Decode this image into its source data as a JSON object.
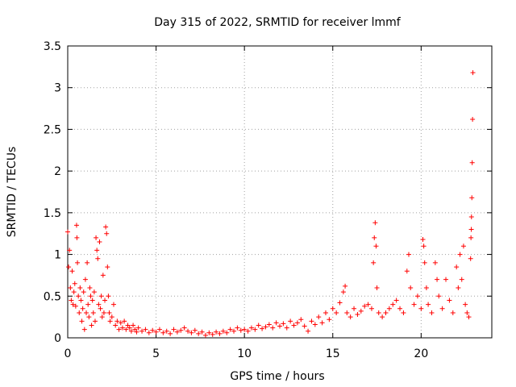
{
  "chart_data": {
    "type": "scatter",
    "title": "Day 315 of 2022, SRMTID for receiver lmmf",
    "xlabel": "GPS time / hours",
    "ylabel": "SRMTID / TECUs",
    "xlim": [
      0,
      24
    ],
    "ylim": [
      0,
      3.5
    ],
    "x_ticks": [
      0,
      5,
      10,
      15,
      20
    ],
    "x_tick_labels": [
      "0",
      "5",
      "10",
      "15",
      "20"
    ],
    "y_ticks": [
      0,
      0.5,
      1,
      1.5,
      2,
      2.5,
      3,
      3.5
    ],
    "y_tick_labels": [
      "0",
      "0.5",
      "1",
      "1.5",
      "2",
      "2.5",
      "3",
      "3.5"
    ],
    "grid": true,
    "marker": "+",
    "series": [
      {
        "name": "SRMTID",
        "color": "#ff0000",
        "points": [
          [
            0.0,
            1.27
          ],
          [
            0.05,
            0.85
          ],
          [
            0.1,
            1.05
          ],
          [
            0.15,
            0.6
          ],
          [
            0.2,
            0.45
          ],
          [
            0.25,
            0.8
          ],
          [
            0.3,
            0.4
          ],
          [
            0.35,
            0.55
          ],
          [
            0.4,
            0.65
          ],
          [
            0.45,
            0.38
          ],
          [
            0.5,
            1.35
          ],
          [
            0.52,
            1.2
          ],
          [
            0.55,
            0.9
          ],
          [
            0.6,
            0.5
          ],
          [
            0.65,
            0.3
          ],
          [
            0.7,
            0.6
          ],
          [
            0.75,
            0.45
          ],
          [
            0.8,
            0.2
          ],
          [
            0.85,
            0.35
          ],
          [
            0.9,
            0.55
          ],
          [
            0.95,
            0.1
          ],
          [
            1.0,
            0.7
          ],
          [
            1.05,
            0.3
          ],
          [
            1.1,
            0.9
          ],
          [
            1.15,
            0.4
          ],
          [
            1.2,
            0.25
          ],
          [
            1.25,
            0.6
          ],
          [
            1.3,
            0.5
          ],
          [
            1.35,
            0.15
          ],
          [
            1.4,
            0.45
          ],
          [
            1.45,
            0.3
          ],
          [
            1.5,
            0.55
          ],
          [
            1.55,
            0.2
          ],
          [
            1.6,
            1.2
          ],
          [
            1.65,
            1.05
          ],
          [
            1.7,
            0.95
          ],
          [
            1.75,
            0.4
          ],
          [
            1.8,
            1.15
          ],
          [
            1.85,
            0.35
          ],
          [
            1.9,
            0.5
          ],
          [
            1.95,
            0.25
          ],
          [
            2.0,
            0.75
          ],
          [
            2.05,
            0.3
          ],
          [
            2.1,
            0.45
          ],
          [
            2.15,
            1.33
          ],
          [
            2.2,
            1.25
          ],
          [
            2.25,
            0.85
          ],
          [
            2.3,
            0.5
          ],
          [
            2.35,
            0.3
          ],
          [
            2.4,
            0.2
          ],
          [
            2.5,
            0.25
          ],
          [
            2.6,
            0.4
          ],
          [
            2.7,
            0.15
          ],
          [
            2.8,
            0.2
          ],
          [
            2.9,
            0.1
          ],
          [
            3.0,
            0.18
          ],
          [
            3.1,
            0.12
          ],
          [
            3.2,
            0.2
          ],
          [
            3.3,
            0.1
          ],
          [
            3.4,
            0.15
          ],
          [
            3.5,
            0.12
          ],
          [
            3.6,
            0.08
          ],
          [
            3.7,
            0.15
          ],
          [
            3.8,
            0.1
          ],
          [
            3.9,
            0.07
          ],
          [
            4.0,
            0.12
          ],
          [
            4.2,
            0.08
          ],
          [
            4.4,
            0.1
          ],
          [
            4.6,
            0.06
          ],
          [
            4.8,
            0.09
          ],
          [
            5.0,
            0.07
          ],
          [
            5.2,
            0.1
          ],
          [
            5.4,
            0.06
          ],
          [
            5.6,
            0.08
          ],
          [
            5.8,
            0.05
          ],
          [
            6.0,
            0.1
          ],
          [
            6.2,
            0.07
          ],
          [
            6.4,
            0.09
          ],
          [
            6.6,
            0.12
          ],
          [
            6.8,
            0.08
          ],
          [
            7.0,
            0.06
          ],
          [
            7.2,
            0.09
          ],
          [
            7.4,
            0.05
          ],
          [
            7.6,
            0.07
          ],
          [
            7.8,
            0.03
          ],
          [
            8.0,
            0.06
          ],
          [
            8.2,
            0.04
          ],
          [
            8.4,
            0.07
          ],
          [
            8.6,
            0.05
          ],
          [
            8.8,
            0.08
          ],
          [
            9.0,
            0.06
          ],
          [
            9.2,
            0.1
          ],
          [
            9.4,
            0.08
          ],
          [
            9.6,
            0.12
          ],
          [
            9.8,
            0.09
          ],
          [
            10.0,
            0.1
          ],
          [
            10.2,
            0.08
          ],
          [
            10.4,
            0.12
          ],
          [
            10.6,
            0.1
          ],
          [
            10.8,
            0.15
          ],
          [
            11.0,
            0.11
          ],
          [
            11.2,
            0.13
          ],
          [
            11.4,
            0.16
          ],
          [
            11.6,
            0.12
          ],
          [
            11.8,
            0.18
          ],
          [
            12.0,
            0.14
          ],
          [
            12.2,
            0.17
          ],
          [
            12.4,
            0.12
          ],
          [
            12.6,
            0.2
          ],
          [
            12.8,
            0.15
          ],
          [
            13.0,
            0.18
          ],
          [
            13.2,
            0.22
          ],
          [
            13.4,
            0.14
          ],
          [
            13.6,
            0.08
          ],
          [
            13.8,
            0.2
          ],
          [
            14.0,
            0.16
          ],
          [
            14.2,
            0.25
          ],
          [
            14.4,
            0.18
          ],
          [
            14.6,
            0.3
          ],
          [
            14.8,
            0.22
          ],
          [
            15.0,
            0.35
          ],
          [
            15.2,
            0.3
          ],
          [
            15.4,
            0.42
          ],
          [
            15.6,
            0.55
          ],
          [
            15.7,
            0.62
          ],
          [
            15.8,
            0.3
          ],
          [
            16.0,
            0.25
          ],
          [
            16.2,
            0.35
          ],
          [
            16.4,
            0.28
          ],
          [
            16.6,
            0.32
          ],
          [
            16.8,
            0.38
          ],
          [
            17.0,
            0.4
          ],
          [
            17.2,
            0.35
          ],
          [
            17.3,
            0.9
          ],
          [
            17.35,
            1.2
          ],
          [
            17.4,
            1.38
          ],
          [
            17.45,
            1.1
          ],
          [
            17.5,
            0.6
          ],
          [
            17.6,
            0.3
          ],
          [
            17.8,
            0.25
          ],
          [
            18.0,
            0.3
          ],
          [
            18.2,
            0.35
          ],
          [
            18.4,
            0.4
          ],
          [
            18.6,
            0.45
          ],
          [
            18.8,
            0.35
          ],
          [
            19.0,
            0.3
          ],
          [
            19.2,
            0.8
          ],
          [
            19.3,
            1.0
          ],
          [
            19.4,
            0.6
          ],
          [
            19.6,
            0.4
          ],
          [
            19.8,
            0.5
          ],
          [
            20.0,
            0.35
          ],
          [
            20.1,
            1.18
          ],
          [
            20.15,
            1.1
          ],
          [
            20.2,
            0.9
          ],
          [
            20.3,
            0.6
          ],
          [
            20.4,
            0.4
          ],
          [
            20.6,
            0.3
          ],
          [
            20.8,
            0.9
          ],
          [
            20.9,
            0.7
          ],
          [
            21.0,
            0.5
          ],
          [
            21.2,
            0.35
          ],
          [
            21.4,
            0.7
          ],
          [
            21.6,
            0.45
          ],
          [
            21.8,
            0.3
          ],
          [
            22.0,
            0.85
          ],
          [
            22.1,
            0.6
          ],
          [
            22.2,
            1.0
          ],
          [
            22.3,
            0.7
          ],
          [
            22.4,
            1.1
          ],
          [
            22.5,
            0.4
          ],
          [
            22.6,
            0.3
          ],
          [
            22.7,
            0.25
          ],
          [
            22.8,
            0.95
          ],
          [
            22.82,
            1.2
          ],
          [
            22.84,
            1.3
          ],
          [
            22.85,
            1.45
          ],
          [
            22.87,
            1.68
          ],
          [
            22.89,
            2.1
          ],
          [
            22.91,
            2.62
          ],
          [
            22.93,
            3.18
          ]
        ]
      }
    ]
  }
}
